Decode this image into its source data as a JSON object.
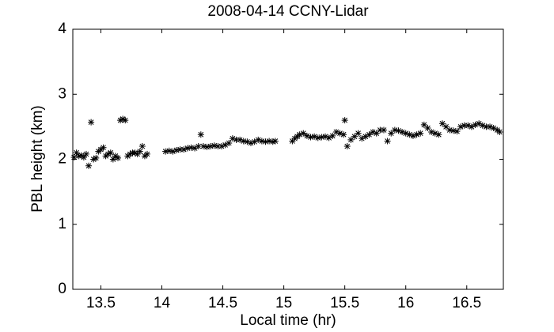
{
  "chart_data": {
    "type": "scatter",
    "title": "2008-04-14 CCNY-Lidar",
    "x_label": "Local time (hr)",
    "y_label": "PBL height (km)",
    "color": "#000000",
    "x": [
      13.28,
      13.3,
      13.32,
      13.34,
      13.36,
      13.38,
      13.4,
      13.42,
      13.44,
      13.46,
      13.48,
      13.5,
      13.52,
      13.54,
      13.56,
      13.58,
      13.6,
      13.62,
      13.64,
      13.66,
      13.68,
      13.7,
      13.72,
      13.74,
      13.76,
      13.78,
      13.8,
      13.82,
      13.84,
      13.86,
      13.88,
      14.03,
      14.06,
      14.09,
      14.12,
      14.15,
      14.18,
      14.21,
      14.24,
      14.27,
      14.3,
      14.32,
      14.34,
      14.37,
      14.4,
      14.43,
      14.46,
      14.49,
      14.52,
      14.55,
      14.58,
      14.61,
      14.64,
      14.67,
      14.7,
      14.73,
      14.76,
      14.79,
      14.82,
      14.85,
      14.88,
      14.91,
      14.93,
      15.07,
      15.09,
      15.11,
      15.13,
      15.16,
      15.19,
      15.22,
      15.25,
      15.28,
      15.31,
      15.34,
      15.37,
      15.4,
      15.43,
      15.46,
      15.49,
      15.5,
      15.52,
      15.55,
      15.58,
      15.61,
      15.64,
      15.67,
      15.7,
      15.73,
      15.76,
      15.79,
      15.82,
      15.85,
      15.88,
      15.91,
      15.94,
      15.97,
      16.0,
      16.03,
      16.06,
      16.09,
      16.12,
      16.15,
      16.18,
      16.21,
      16.24,
      16.27,
      16.3,
      16.33,
      16.36,
      16.39,
      16.42,
      16.45,
      16.48,
      16.51,
      16.54,
      16.57,
      16.6,
      16.63,
      16.66,
      16.69,
      16.72,
      16.75,
      16.77
    ],
    "values": [
      2.03,
      2.1,
      2.05,
      2.06,
      2.03,
      2.08,
      1.9,
      2.57,
      2.0,
      2.02,
      2.12,
      2.15,
      2.18,
      2.05,
      2.08,
      2.1,
      2.0,
      2.05,
      2.02,
      2.6,
      2.62,
      2.6,
      2.05,
      2.08,
      2.1,
      2.1,
      2.08,
      2.12,
      2.2,
      2.05,
      2.08,
      2.12,
      2.13,
      2.12,
      2.14,
      2.15,
      2.15,
      2.17,
      2.18,
      2.17,
      2.2,
      2.38,
      2.2,
      2.19,
      2.2,
      2.21,
      2.2,
      2.2,
      2.22,
      2.25,
      2.32,
      2.3,
      2.3,
      2.28,
      2.27,
      2.25,
      2.27,
      2.3,
      2.28,
      2.27,
      2.28,
      2.27,
      2.28,
      2.28,
      2.32,
      2.35,
      2.38,
      2.4,
      2.36,
      2.34,
      2.35,
      2.33,
      2.34,
      2.35,
      2.33,
      2.36,
      2.42,
      2.4,
      2.38,
      2.6,
      2.2,
      2.3,
      2.35,
      2.4,
      2.32,
      2.35,
      2.38,
      2.42,
      2.4,
      2.45,
      2.45,
      2.28,
      2.4,
      2.45,
      2.44,
      2.42,
      2.4,
      2.38,
      2.36,
      2.38,
      2.4,
      2.53,
      2.48,
      2.42,
      2.4,
      2.38,
      2.55,
      2.5,
      2.45,
      2.44,
      2.43,
      2.5,
      2.52,
      2.52,
      2.5,
      2.53,
      2.55,
      2.52,
      2.5,
      2.5,
      2.48,
      2.45,
      2.42
    ],
    "xlim": [
      13.27,
      16.8
    ],
    "ylim": [
      0,
      4
    ],
    "xticks": [
      13.5,
      14,
      14.5,
      15,
      15.5,
      16,
      16.5
    ],
    "yticks": [
      0,
      1,
      2,
      3,
      4
    ]
  }
}
